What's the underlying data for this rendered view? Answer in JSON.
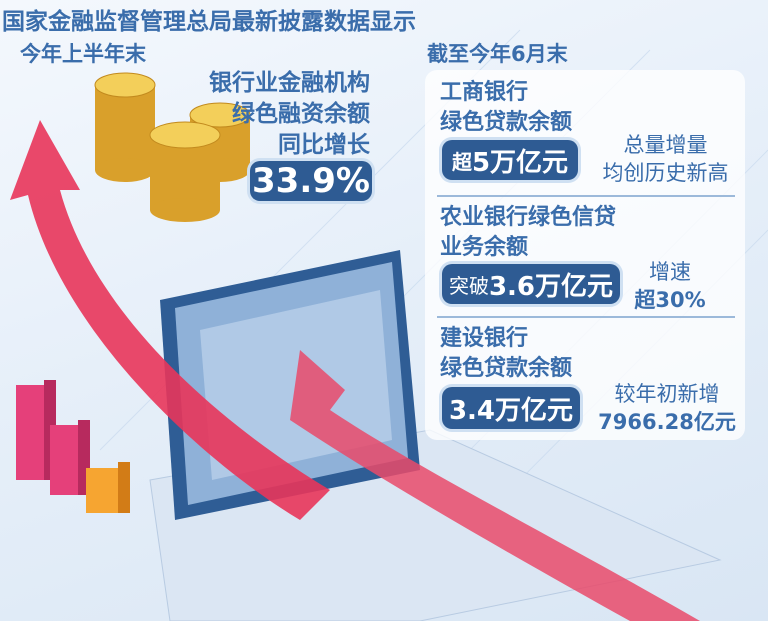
{
  "title": "国家金融监督管理总局最新披露数据显示",
  "left": {
    "period": "今年上半年末",
    "lines": [
      "银行业金融机构",
      "绿色融资余额",
      "同比增长"
    ],
    "value": "33.9%"
  },
  "right": {
    "period": "截至今年6月末",
    "items": [
      {
        "bank_lines": [
          "工商银行",
          "绿色贷款余额"
        ],
        "badge_prefix": "超",
        "badge_value": "5万亿元",
        "note_lines": [
          "总量增量",
          "均创历史新高"
        ]
      },
      {
        "bank_lines": [
          "农业银行绿色信贷",
          "业务余额"
        ],
        "badge_prefix": "突破",
        "badge_value": "3.6万亿元",
        "note_lines": [
          "增速",
          "超30%"
        ]
      },
      {
        "bank_lines": [
          "建设银行",
          "绿色贷款余额"
        ],
        "badge_prefix": "",
        "badge_value": "3.4万亿元",
        "note_lines": [
          "较年初新增",
          "7966.28亿元"
        ]
      }
    ]
  },
  "colors": {
    "title": "#3a6dab",
    "badge": "#2e5b93",
    "arrow": "#e8355a",
    "coin": "#e8b93a"
  },
  "icons": [
    "gold-coins-icon",
    "red-arrow-icon",
    "computer-monitor-icon",
    "bar-blocks-icon"
  ]
}
